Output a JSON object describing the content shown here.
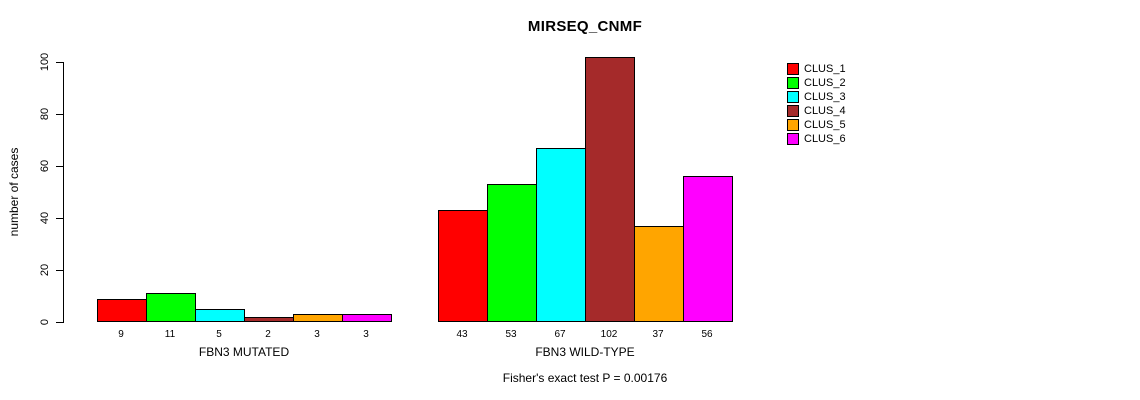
{
  "chart_data": {
    "type": "bar",
    "title": "MIRSEQ_CNMF",
    "ylabel": "number of cases",
    "xlabel": "",
    "ylim": [
      0,
      100
    ],
    "yticks": [
      0,
      20,
      40,
      60,
      80,
      100
    ],
    "grid": false,
    "legend_position": "right",
    "legend": [
      "CLUS_1",
      "CLUS_2",
      "CLUS_3",
      "CLUS_4",
      "CLUS_5",
      "CLUS_6"
    ],
    "colors": [
      "#ff0000",
      "#00ff00",
      "#00ffff",
      "#a52a2a",
      "#ffa500",
      "#ff00ff"
    ],
    "groups": [
      {
        "label": "FBN3 MUTATED",
        "values": [
          9,
          11,
          5,
          2,
          3,
          3
        ]
      },
      {
        "label": "FBN3 WILD-TYPE",
        "values": [
          43,
          53,
          67,
          102,
          37,
          56
        ]
      }
    ],
    "footer": "Fisher's exact test P = 0.00176"
  }
}
